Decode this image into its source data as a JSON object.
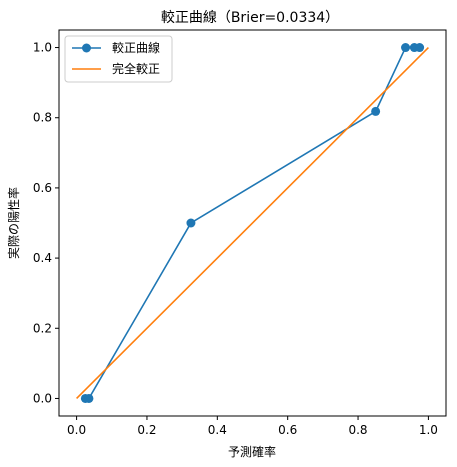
{
  "chart_data": {
    "type": "line",
    "title": "較正曲線（Brier=0.0334）",
    "xlabel": "予測確率",
    "ylabel": "実際の陽性率",
    "xlim": [
      -0.05,
      1.05
    ],
    "ylim": [
      -0.05,
      1.05
    ],
    "xticks": [
      "0.0",
      "0.2",
      "0.4",
      "0.6",
      "0.8",
      "1.0"
    ],
    "yticks": [
      "0.0",
      "0.2",
      "0.4",
      "0.6",
      "0.8",
      "1.0"
    ],
    "grid": false,
    "legend_position": "top-left",
    "series": [
      {
        "name": "較正曲線",
        "color": "#1f77b4",
        "marker": "circle",
        "x": [
          0.025,
          0.035,
          0.325,
          0.85,
          0.935,
          0.96,
          0.975
        ],
        "y": [
          0.0,
          0.0,
          0.5,
          0.818,
          1.0,
          1.0,
          1.0
        ]
      },
      {
        "name": "完全較正",
        "color": "#ff7f0e",
        "marker": "none",
        "x": [
          0.0,
          1.0
        ],
        "y": [
          0.0,
          1.0
        ]
      }
    ]
  }
}
